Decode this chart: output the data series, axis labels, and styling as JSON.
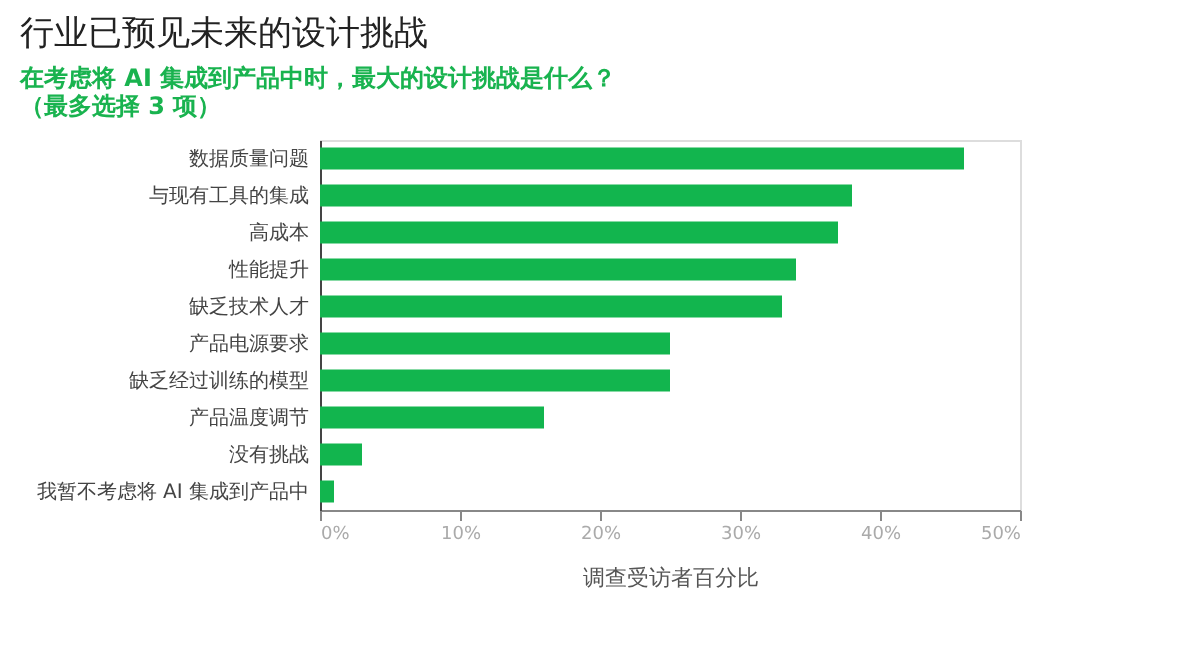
{
  "chart_data": {
    "type": "bar",
    "orientation": "horizontal",
    "title": "行业已预见未来的设计挑战",
    "subtitle": "在考虑将 AI 集成到产品中时，最大的设计挑战是什么？（最多选择 3 项）",
    "xlabel": "调查受访者百分比",
    "categories": [
      "数据质量问题",
      "与现有工具的集成",
      "高成本",
      "性能提升",
      "缺乏技术人才",
      "产品电源要求",
      "缺乏经过训练的模型",
      "产品温度调节",
      "没有挑战",
      "我暂不考虑将 AI 集成到产品中"
    ],
    "values": [
      46,
      38,
      37,
      34,
      33,
      25,
      25,
      16,
      3,
      1
    ],
    "color": "#12b54e",
    "xlim": [
      0,
      50
    ],
    "xticks": [
      {
        "value": 0,
        "label": "0%"
      },
      {
        "value": 10,
        "label": "10%"
      },
      {
        "value": 20,
        "label": "20%"
      },
      {
        "value": 30,
        "label": "30%"
      },
      {
        "value": 40,
        "label": "40%"
      },
      {
        "value": 50,
        "label": "50%"
      }
    ],
    "grid": false
  }
}
